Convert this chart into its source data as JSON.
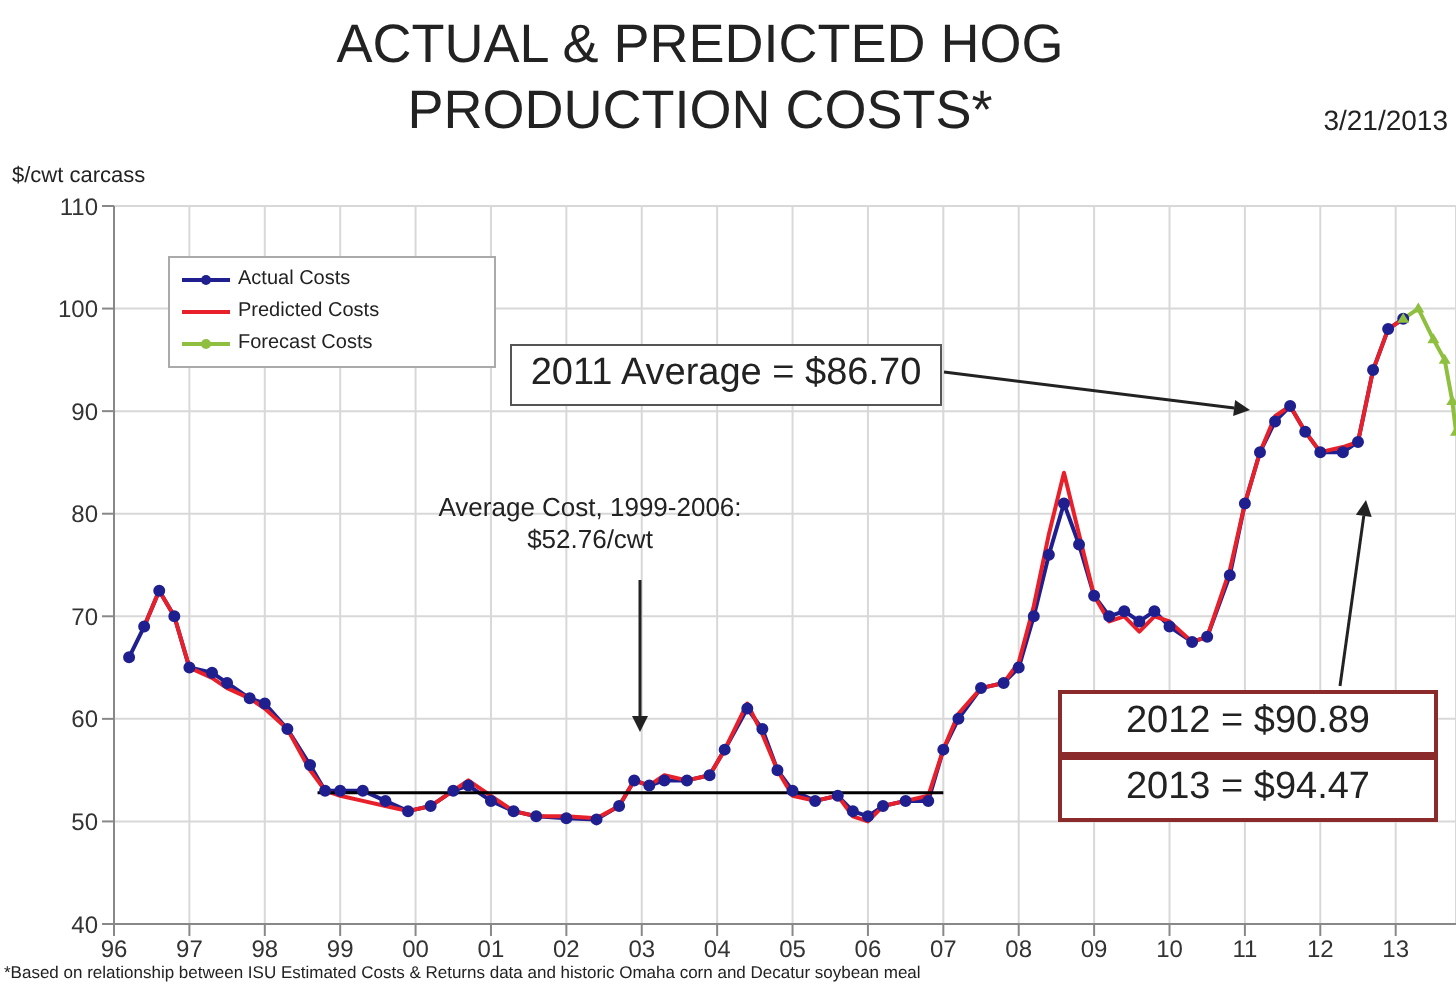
{
  "chart_data": {
    "type": "line",
    "title": "ACTUAL & PREDICTED HOG PRODUCTION COSTS*",
    "ylabel": "$/cwt carcass",
    "xlim": [
      1996,
      2013.8
    ],
    "xticks": [
      {
        "value": 1996,
        "label": "96"
      },
      {
        "value": 1997,
        "label": "97"
      },
      {
        "value": 1998,
        "label": "98"
      },
      {
        "value": 1999,
        "label": "99"
      },
      {
        "value": 2000,
        "label": "00"
      },
      {
        "value": 2001,
        "label": "01"
      },
      {
        "value": 2002,
        "label": "02"
      },
      {
        "value": 2003,
        "label": "03"
      },
      {
        "value": 2004,
        "label": "04"
      },
      {
        "value": 2005,
        "label": "05"
      },
      {
        "value": 2006,
        "label": "06"
      },
      {
        "value": 2007,
        "label": "07"
      },
      {
        "value": 2008,
        "label": "08"
      },
      {
        "value": 2009,
        "label": "09"
      },
      {
        "value": 2010,
        "label": "10"
      },
      {
        "value": 2011,
        "label": "11"
      },
      {
        "value": 2012,
        "label": "12"
      },
      {
        "value": 2013,
        "label": "13"
      }
    ],
    "ylim": [
      40,
      110
    ],
    "yticks": [
      40,
      50,
      60,
      70,
      80,
      90,
      100,
      110
    ],
    "grid": true,
    "legend": "top left",
    "series": [
      {
        "name": "Actual Costs",
        "color": "#1f1f8f",
        "marker": "circle",
        "x": [
          1996.2,
          1996.4,
          1996.6,
          1996.8,
          1997.0,
          1997.3,
          1997.5,
          1997.8,
          1998.0,
          1998.3,
          1998.6,
          1998.8,
          1999.0,
          1999.3,
          1999.6,
          1999.9,
          2000.2,
          2000.5,
          2000.7,
          2001.0,
          2001.3,
          2001.6,
          2002.0,
          2002.4,
          2002.7,
          2002.9,
          2003.1,
          2003.3,
          2003.6,
          2003.9,
          2004.1,
          2004.4,
          2004.6,
          2004.8,
          2005.0,
          2005.3,
          2005.6,
          2005.8,
          2006.0,
          2006.2,
          2006.5,
          2006.8,
          2007.0,
          2007.2,
          2007.5,
          2007.8,
          2008.0,
          2008.2,
          2008.4,
          2008.6,
          2008.8,
          2009.0,
          2009.2,
          2009.4,
          2009.6,
          2009.8,
          2010.0,
          2010.3,
          2010.5,
          2010.8,
          2011.0,
          2011.2,
          2011.4,
          2011.6,
          2011.8,
          2012.0,
          2012.3,
          2012.5,
          2012.7,
          2012.9,
          2013.1
        ],
        "values": [
          66,
          69,
          72.5,
          70,
          65,
          64.5,
          63.5,
          62,
          61.5,
          59,
          55.5,
          53,
          53,
          53,
          52,
          51,
          51.5,
          53,
          53.5,
          52,
          51,
          50.5,
          50.3,
          50.2,
          51.5,
          54,
          53.5,
          54,
          54,
          54.5,
          57,
          61,
          59,
          55,
          53,
          52,
          52.5,
          51,
          50.5,
          51.5,
          52,
          52,
          57,
          60,
          63,
          63.5,
          65,
          70,
          76,
          81,
          77,
          72,
          70,
          70.5,
          69.5,
          70.5,
          69,
          67.5,
          68,
          74,
          81,
          86,
          89,
          90.5,
          88,
          86,
          86,
          87,
          94,
          98,
          99
        ]
      },
      {
        "name": "Predicted Costs",
        "color": "#e8202a",
        "marker": "none",
        "x": [
          1996.4,
          1996.6,
          1996.8,
          1997.0,
          1997.3,
          1997.5,
          1997.8,
          1998.0,
          1998.3,
          1998.6,
          1998.8,
          1999.0,
          1999.3,
          1999.6,
          1999.9,
          2000.2,
          2000.5,
          2000.7,
          2001.0,
          2001.3,
          2001.6,
          2002.0,
          2002.4,
          2002.7,
          2002.9,
          2003.1,
          2003.3,
          2003.6,
          2003.9,
          2004.1,
          2004.4,
          2004.6,
          2004.8,
          2005.0,
          2005.3,
          2005.6,
          2005.8,
          2006.0,
          2006.2,
          2006.5,
          2006.8,
          2007.0,
          2007.2,
          2007.5,
          2007.8,
          2008.0,
          2008.2,
          2008.4,
          2008.6,
          2008.8,
          2009.0,
          2009.2,
          2009.4,
          2009.6,
          2009.8,
          2010.0,
          2010.3,
          2010.5,
          2010.8,
          2011.0,
          2011.2,
          2011.4,
          2011.6,
          2011.8,
          2012.0,
          2012.3,
          2012.5,
          2012.7,
          2012.9,
          2013.1
        ],
        "values": [
          69,
          72.5,
          70,
          65,
          64,
          63,
          62,
          61,
          59,
          55,
          53,
          52.5,
          52,
          51.5,
          51,
          51.5,
          53,
          54,
          52.5,
          51,
          50.5,
          50.5,
          50.3,
          51.5,
          54,
          53.5,
          54.5,
          54,
          54.5,
          57,
          61.5,
          58.5,
          55,
          52.5,
          52,
          52.5,
          50.5,
          50,
          51.5,
          52,
          52.5,
          57,
          60.5,
          63,
          63.5,
          65.5,
          71,
          78,
          84,
          78,
          72,
          69.5,
          70,
          68.5,
          70,
          69.5,
          67.5,
          68,
          74.5,
          81,
          86,
          89.5,
          90.5,
          88,
          86,
          86.5,
          87,
          94,
          98,
          99
        ]
      },
      {
        "name": "Forecast Costs",
        "color": "#8fbf3f",
        "marker": "triangle",
        "x": [
          2013.1,
          2013.3,
          2013.5,
          2013.65,
          2013.75,
          2013.8
        ],
        "values": [
          99,
          100,
          97,
          95,
          91,
          88
        ]
      },
      {
        "color": "#000000",
        "marker": "none",
        "x": [
          1998.7,
          2007
        ],
        "values": [
          52.8,
          52.8
        ]
      }
    ],
    "annotations": [
      "Average Cost, 1999-2006: $52.76/cwt",
      "2011 Average = $86.70",
      "2012 = $90.89",
      "2013 = $94.47",
      "3/21/2013",
      "*Based on relationship between ISU Estimated Costs & Returns data and historic Omaha corn and Decatur soybean meal"
    ]
  }
}
